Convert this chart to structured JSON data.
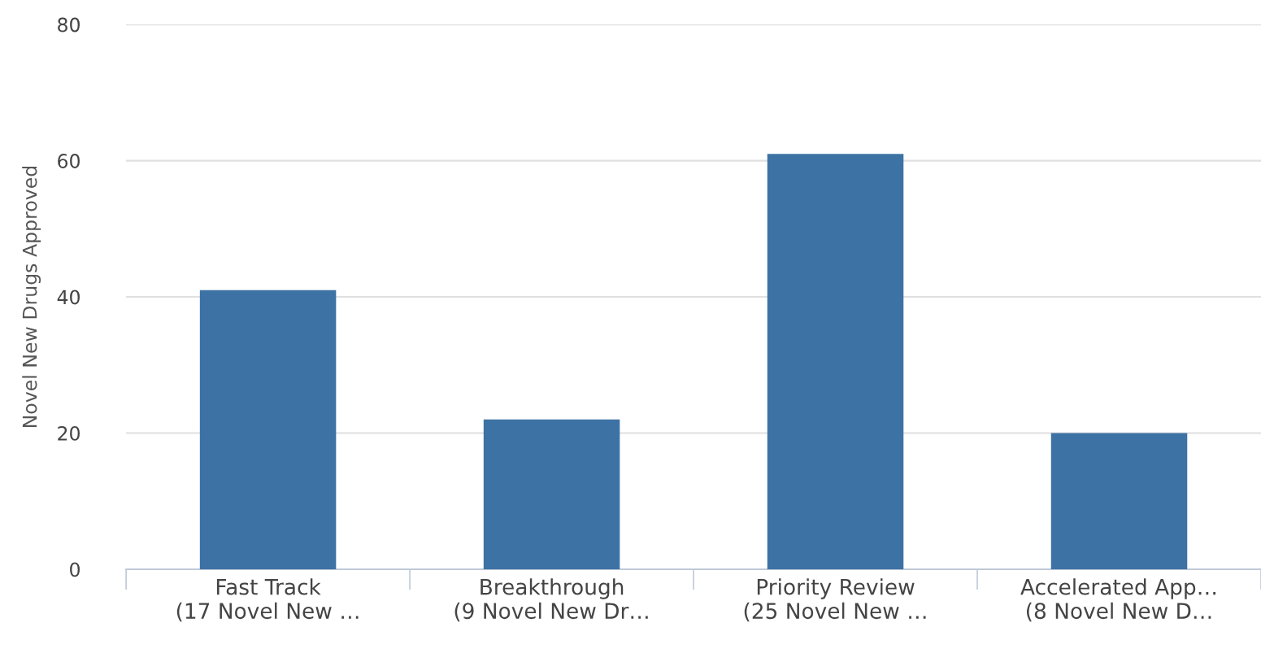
{
  "chart_data": {
    "type": "bar",
    "ylabel": "Novel New Drugs Approved",
    "categories": [
      "Fast Track\n(17 Novel New …",
      "Breakthrough\n(9 Novel New Dr…",
      "Priority Review\n(25 Novel New …",
      "Accelerated App…\n(8 Novel New D…"
    ],
    "values": [
      41,
      22,
      61,
      20
    ],
    "color": "#3d72a4",
    "ylim": [
      0,
      80
    ],
    "yticks": [
      0,
      20,
      40,
      60,
      80
    ],
    "grid": "y"
  }
}
